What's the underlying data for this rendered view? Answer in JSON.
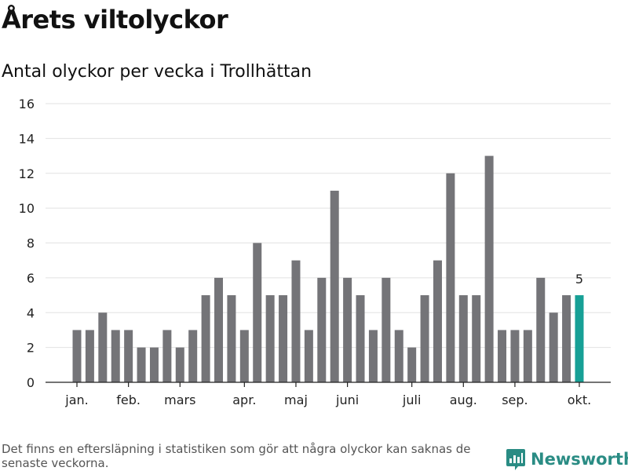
{
  "title": "Årets viltolyckor",
  "subtitle": "Antal olyckor per vecka i Trollhättan",
  "footnote": "Det finns en eftersläpning i statistiken som gör att några olyckor kan saknas de senaste veckorna.",
  "brand": {
    "name": "Newsworthy",
    "icon": "newsworthy-logo-icon",
    "color": "#2a8c84"
  },
  "colors": {
    "bar": "#747478",
    "highlight": "#17a096"
  },
  "chart_data": {
    "type": "bar",
    "title": "Årets viltolyckor",
    "subtitle": "Antal olyckor per vecka i Trollhättan",
    "xlabel": "",
    "ylabel": "",
    "ylim": [
      0,
      16
    ],
    "yticks": [
      0,
      2,
      4,
      6,
      8,
      10,
      12,
      14,
      16
    ],
    "grid": true,
    "weeks": [
      1,
      2,
      3,
      4,
      5,
      6,
      7,
      8,
      9,
      10,
      11,
      12,
      13,
      14,
      15,
      16,
      17,
      18,
      19,
      20,
      21,
      22,
      23,
      24,
      25,
      26,
      27,
      28,
      29,
      30,
      31,
      32,
      33,
      34,
      35,
      36,
      37,
      38,
      39,
      40
    ],
    "values": [
      3,
      3,
      4,
      3,
      3,
      2,
      2,
      3,
      2,
      3,
      5,
      6,
      5,
      3,
      8,
      5,
      5,
      7,
      3,
      6,
      11,
      6,
      5,
      3,
      6,
      3,
      2,
      5,
      7,
      12,
      5,
      5,
      13,
      3,
      3,
      3,
      6,
      4,
      5,
      5
    ],
    "highlight_index": 39,
    "highlight_label": "5",
    "month_ticks": [
      {
        "label": "jan.",
        "week": 1
      },
      {
        "label": "feb.",
        "week": 5
      },
      {
        "label": "mars",
        "week": 9
      },
      {
        "label": "apr.",
        "week": 14
      },
      {
        "label": "maj",
        "week": 18
      },
      {
        "label": "juni",
        "week": 22
      },
      {
        "label": "juli",
        "week": 27
      },
      {
        "label": "aug.",
        "week": 31
      },
      {
        "label": "sep.",
        "week": 35
      },
      {
        "label": "okt.",
        "week": 40
      }
    ]
  }
}
